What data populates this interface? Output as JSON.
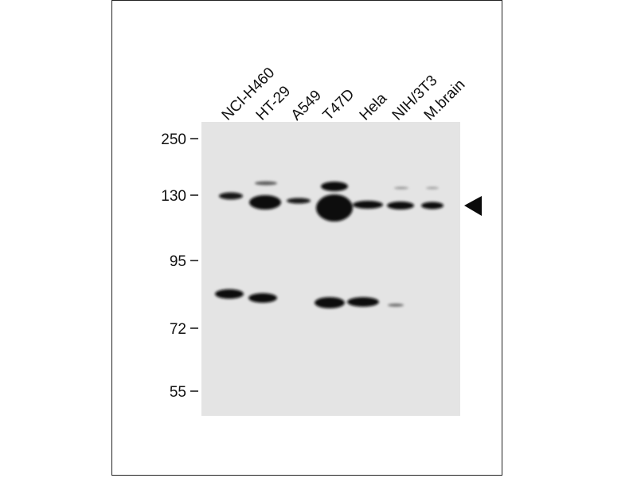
{
  "lanes": [
    "NCI-H460",
    "HT-29",
    "A549",
    "T47D",
    "Hela",
    "NIH/3T3",
    "M.brain"
  ],
  "markers": [
    "250",
    "130",
    "95",
    "72",
    "55"
  ],
  "arrow_icon": "left-pointing-triangle",
  "colors": {
    "membrane": "#e4e4e4",
    "band": "#0a0a0a"
  }
}
